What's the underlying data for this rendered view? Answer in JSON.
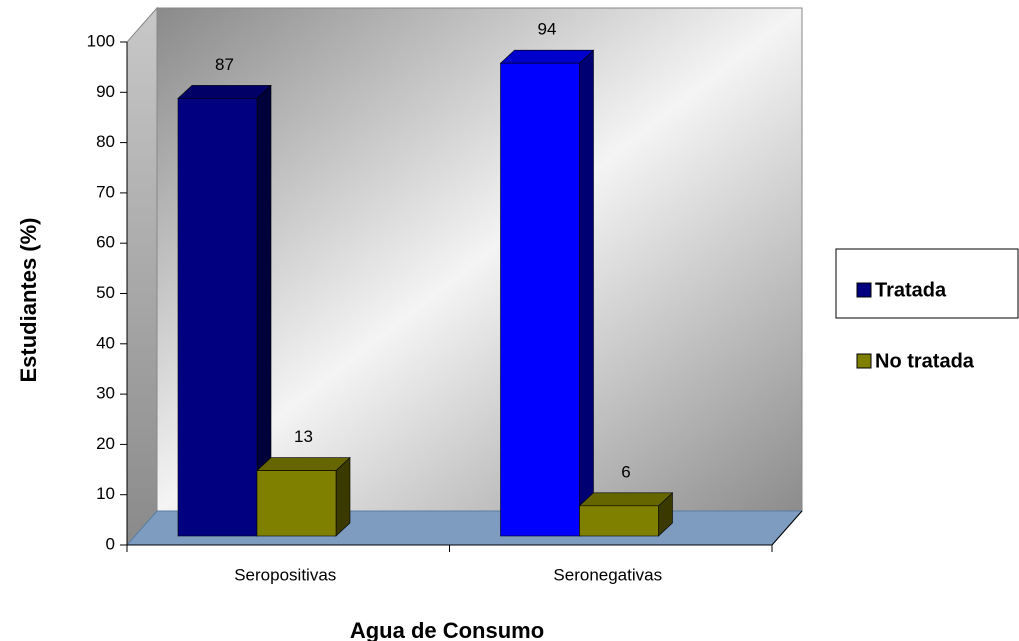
{
  "chart_data": {
    "type": "bar3d",
    "xlabel": "Agua de Consumo",
    "ylabel": "Estudiantes (%)",
    "categories": [
      "Seropositivas",
      "Seronegativas"
    ],
    "series": [
      {
        "name": "Tratada",
        "color": "#000080",
        "colors": [
          "#000080",
          "#0000ff"
        ],
        "values": [
          87,
          94
        ]
      },
      {
        "name": "No tratada",
        "color": "#808000",
        "colors": [
          "#808000",
          "#808000"
        ],
        "values": [
          13,
          6
        ]
      }
    ],
    "ylim": [
      0,
      100
    ],
    "yticks": [
      0,
      10,
      20,
      30,
      40,
      50,
      60,
      70,
      80,
      90,
      100
    ],
    "legend": "right"
  }
}
